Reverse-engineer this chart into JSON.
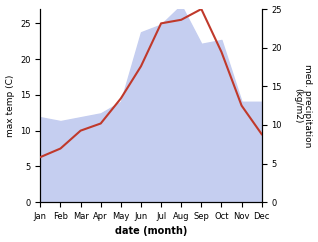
{
  "months": [
    "Jan",
    "Feb",
    "Mar",
    "Apr",
    "May",
    "Jun",
    "Jul",
    "Aug",
    "Sep",
    "Oct",
    "Nov",
    "Dec"
  ],
  "month_positions": [
    1,
    2,
    3,
    4,
    5,
    6,
    7,
    8,
    9,
    10,
    11,
    12
  ],
  "temperature": [
    6.3,
    7.5,
    10.0,
    11.0,
    14.5,
    19.0,
    25.0,
    25.5,
    27.0,
    21.0,
    13.5,
    9.5
  ],
  "precipitation": [
    11.0,
    10.5,
    11.0,
    11.5,
    13.0,
    22.0,
    23.0,
    25.5,
    20.5,
    21.0,
    13.0,
    13.0
  ],
  "temp_color": "#c0392b",
  "precip_fill_color": "#c5cef0",
  "xlabel": "date (month)",
  "ylabel_left": "max temp (C)",
  "ylabel_right": "med. precipitation\n(kg/m2)",
  "ylim_left": [
    0,
    27
  ],
  "ylim_right": [
    0,
    25
  ],
  "yticks_left": [
    0,
    5,
    10,
    15,
    20,
    25
  ],
  "yticks_right": [
    0,
    5,
    10,
    15,
    20,
    25
  ],
  "background_color": "#ffffff",
  "line_width": 1.5
}
